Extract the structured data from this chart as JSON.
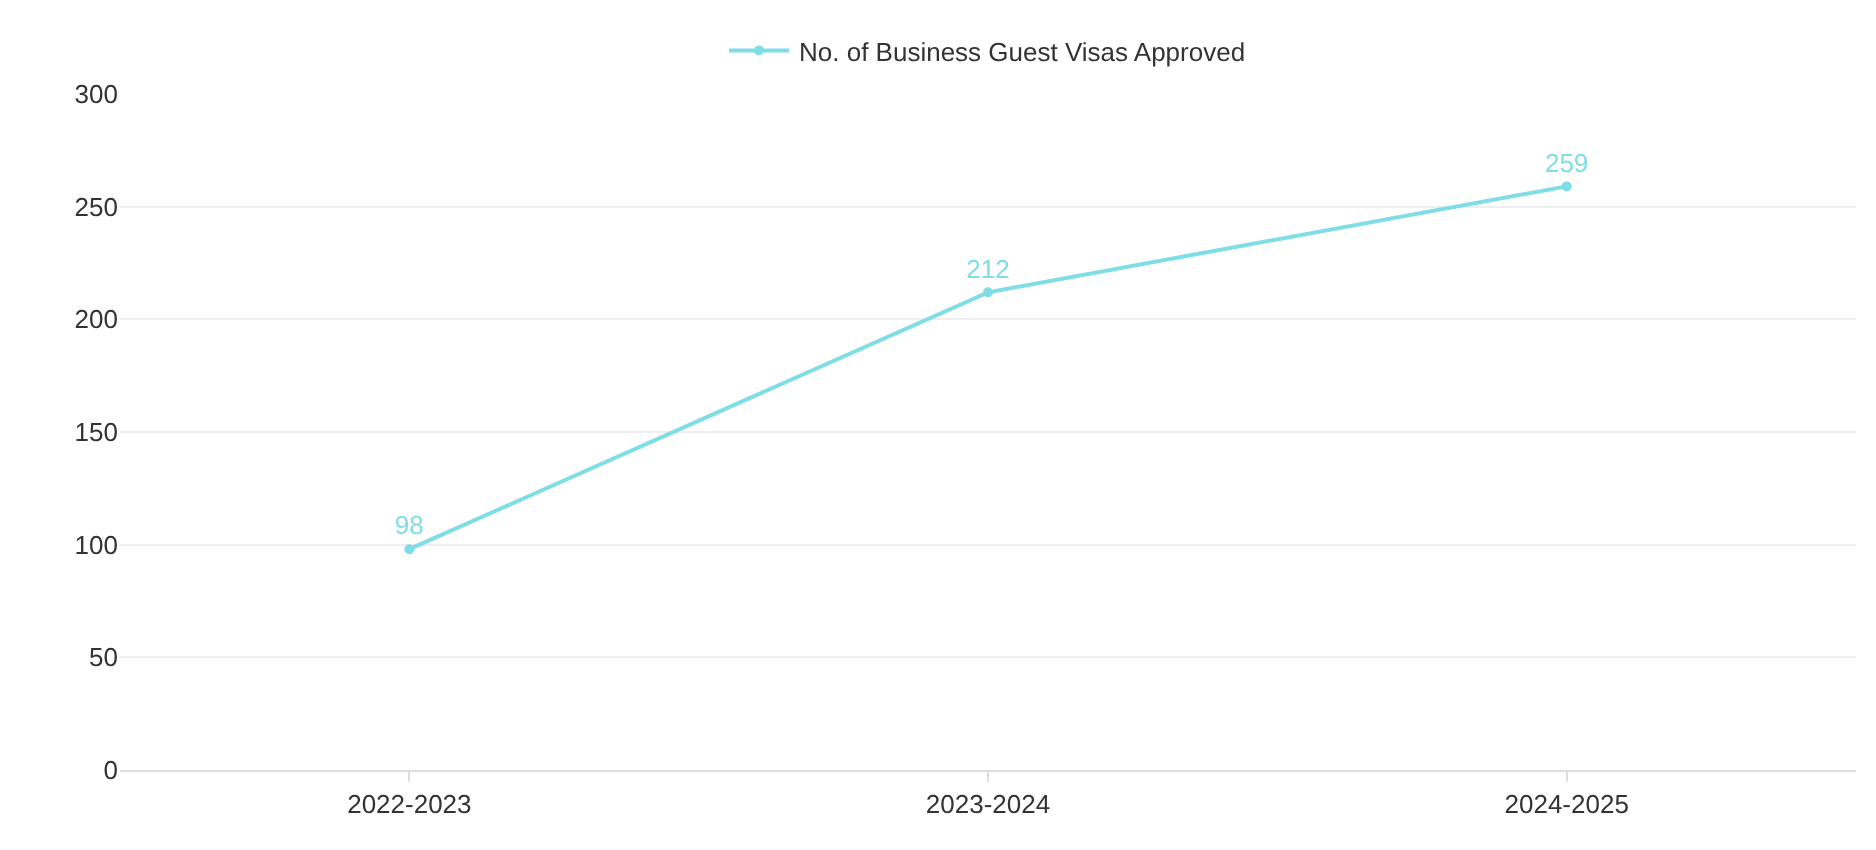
{
  "chart_data": {
    "type": "line",
    "categories": [
      "2022-2023",
      "2023-2024",
      "2024-2025"
    ],
    "series": [
      {
        "name": "No. of Business Guest Visas Approved",
        "color": "#7fdde6",
        "values": [
          98,
          212,
          259
        ]
      }
    ],
    "ylim": [
      0,
      300
    ],
    "yticks": [
      0,
      50,
      100,
      150,
      200,
      250,
      300
    ],
    "grid": "y",
    "legend": "top",
    "marker": "circle",
    "line_style": "solid",
    "data_labels": true
  }
}
